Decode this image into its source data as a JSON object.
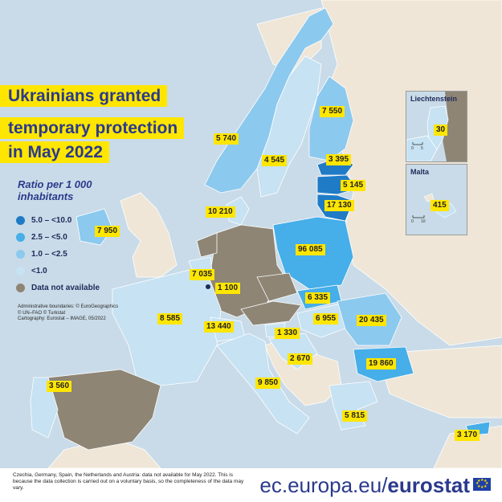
{
  "title": {
    "line1": "Ukrainians granted",
    "line2": "temporary protection",
    "line3": "in May 2022"
  },
  "legend": {
    "heading_line1": "Ratio per 1 000",
    "heading_line2": "inhabitants",
    "items": [
      {
        "label": "5.0 – <10.0",
        "color": "#1f7bc6"
      },
      {
        "label": "2.5 – <5.0",
        "color": "#46aee8"
      },
      {
        "label": "1.0 – <2.5",
        "color": "#8cc9ee"
      },
      {
        "label": "<1.0",
        "color": "#c6e2f3"
      },
      {
        "label": "Data not available",
        "color": "#8e8575"
      }
    ]
  },
  "credits": {
    "line1": "Administrative boundaries: © EuroGeographics",
    "line2": "© UN–FAO © Turkstat",
    "line3": "Cartography: Eurostat – IMAGE, 05/2022"
  },
  "values": {
    "norway": "5 740",
    "sweden": "4 545",
    "finland": "7 550",
    "estonia": "3 395",
    "latvia": "5 145",
    "lithuania": "17 130",
    "denmark": "10 210",
    "ireland": "7 950",
    "poland": "96 085",
    "belgium": "7 035",
    "luxembourg": "1 100",
    "slovakia": "6 335",
    "hungary": "6 955",
    "romania": "20 435",
    "france": "8 585",
    "switzerland": "13 440",
    "slovenia": "1 330",
    "bulgaria": "19 860",
    "croatia_bosnia": "2 670",
    "portugal": "3 560",
    "italy": "9 850",
    "greece": "5 815",
    "cyprus": "3 170"
  },
  "insets": {
    "liechtenstein": {
      "title": "Liechtenstein",
      "value": "30",
      "scale_zero": "0",
      "scale_max": "5"
    },
    "malta": {
      "title": "Malta",
      "value": "415",
      "scale_zero": "0",
      "scale_max": "10"
    }
  },
  "footer": {
    "note": "Czechia, Germany, Spain, the Netherlands and Austria: data not available for May 2022. This is because the data collection is carried out on a voluntary basis, so the completeness of the data may vary.",
    "site_prefix": "ec.europa.eu/",
    "site_brand": "eurostat"
  },
  "colors": {
    "sea": "#c9dbe8",
    "non_eu_land": "#efe6d7",
    "label_bg": "#ffe600",
    "title_text": "#2b3a8c"
  }
}
